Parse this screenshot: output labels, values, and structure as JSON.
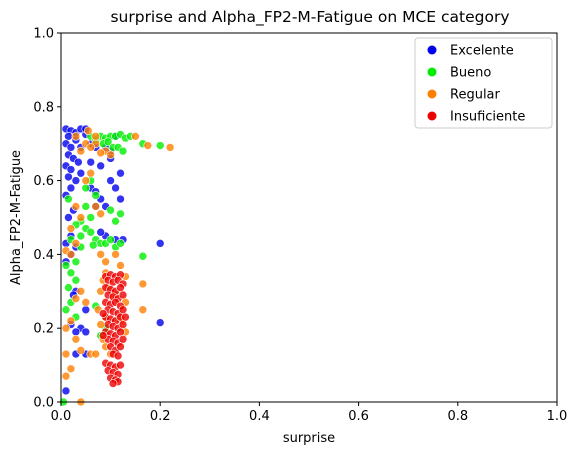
{
  "chart_data": {
    "type": "scatter",
    "title": "surprise and Alpha_FP2-M-Fatigue on MCE category",
    "xlabel": "surprise",
    "ylabel": "Alpha_FP2-M-Fatigue",
    "xlim": [
      0,
      1
    ],
    "ylim": [
      0,
      1
    ],
    "x_ticks": [
      "0.0",
      "0.2",
      "0.4",
      "0.6",
      "0.8",
      "1.0"
    ],
    "y_ticks": [
      "0.0",
      "0.2",
      "0.4",
      "0.6",
      "0.8",
      "1.0"
    ],
    "grid": false,
    "legend_position": "top-right",
    "series": [
      {
        "name": "Excelente",
        "color": "#0000ee",
        "points": [
          [
            0.01,
            0.74
          ],
          [
            0.02,
            0.735
          ],
          [
            0.015,
            0.72
          ],
          [
            0.03,
            0.73
          ],
          [
            0.04,
            0.74
          ],
          [
            0.05,
            0.725
          ],
          [
            0.01,
            0.7
          ],
          [
            0.02,
            0.69
          ],
          [
            0.03,
            0.71
          ],
          [
            0.015,
            0.67
          ],
          [
            0.025,
            0.66
          ],
          [
            0.01,
            0.64
          ],
          [
            0.02,
            0.63
          ],
          [
            0.035,
            0.65
          ],
          [
            0.015,
            0.61
          ],
          [
            0.03,
            0.6
          ],
          [
            0.02,
            0.58
          ],
          [
            0.01,
            0.56
          ],
          [
            0.04,
            0.62
          ],
          [
            0.06,
            0.7
          ],
          [
            0.07,
            0.69
          ],
          [
            0.09,
            0.69
          ],
          [
            0.1,
            0.68
          ],
          [
            0.11,
            0.72
          ],
          [
            0.06,
            0.58
          ],
          [
            0.07,
            0.57
          ],
          [
            0.08,
            0.55
          ],
          [
            0.09,
            0.53
          ],
          [
            0.07,
            0.53
          ],
          [
            0.11,
            0.58
          ],
          [
            0.12,
            0.55
          ],
          [
            0.1,
            0.6
          ],
          [
            0.12,
            0.62
          ],
          [
            0.11,
            0.44
          ],
          [
            0.09,
            0.45
          ],
          [
            0.08,
            0.46
          ],
          [
            0.125,
            0.44
          ],
          [
            0.02,
            0.45
          ],
          [
            0.01,
            0.43
          ],
          [
            0.03,
            0.42
          ],
          [
            0.02,
            0.4
          ],
          [
            0.01,
            0.38
          ],
          [
            0.03,
            0.3
          ],
          [
            0.025,
            0.29
          ],
          [
            0.05,
            0.25
          ],
          [
            0.04,
            0.2
          ],
          [
            0.02,
            0.21
          ],
          [
            0.03,
            0.19
          ],
          [
            0.05,
            0.19
          ],
          [
            0.03,
            0.13
          ],
          [
            0.05,
            0.13
          ],
          [
            0.01,
            0.03
          ],
          [
            0.2,
            0.43
          ],
          [
            0.2,
            0.215
          ],
          [
            0.04,
            0.69
          ],
          [
            0.05,
            0.74
          ],
          [
            0.08,
            0.64
          ],
          [
            0.1,
            0.66
          ],
          [
            0.06,
            0.65
          ],
          [
            0.015,
            0.5
          ],
          [
            0.025,
            0.52
          ]
        ]
      },
      {
        "name": "Bueno",
        "color": "#00ee00",
        "points": [
          [
            0.08,
            0.72
          ],
          [
            0.09,
            0.715
          ],
          [
            0.1,
            0.72
          ],
          [
            0.11,
            0.72
          ],
          [
            0.12,
            0.725
          ],
          [
            0.13,
            0.715
          ],
          [
            0.085,
            0.7
          ],
          [
            0.095,
            0.705
          ],
          [
            0.105,
            0.69
          ],
          [
            0.115,
            0.69
          ],
          [
            0.125,
            0.68
          ],
          [
            0.14,
            0.72
          ],
          [
            0.2,
            0.695
          ],
          [
            0.165,
            0.7
          ],
          [
            0.06,
            0.72
          ],
          [
            0.07,
            0.71
          ],
          [
            0.06,
            0.6
          ],
          [
            0.05,
            0.58
          ],
          [
            0.07,
            0.56
          ],
          [
            0.05,
            0.53
          ],
          [
            0.06,
            0.5
          ],
          [
            0.04,
            0.49
          ],
          [
            0.03,
            0.48
          ],
          [
            0.05,
            0.47
          ],
          [
            0.06,
            0.46
          ],
          [
            0.04,
            0.45
          ],
          [
            0.07,
            0.44
          ],
          [
            0.08,
            0.43
          ],
          [
            0.09,
            0.43
          ],
          [
            0.1,
            0.44
          ],
          [
            0.11,
            0.42
          ],
          [
            0.12,
            0.43
          ],
          [
            0.065,
            0.425
          ],
          [
            0.01,
            0.37
          ],
          [
            0.02,
            0.35
          ],
          [
            0.03,
            0.33
          ],
          [
            0.015,
            0.31
          ],
          [
            0.02,
            0.27
          ],
          [
            0.01,
            0.25
          ],
          [
            0.03,
            0.23
          ],
          [
            0.07,
            0.26
          ],
          [
            0.09,
            0.2
          ],
          [
            0.08,
            0.18
          ],
          [
            0.11,
            0.49
          ],
          [
            0.12,
            0.51
          ],
          [
            0.165,
            0.395
          ],
          [
            0.005,
            0.0
          ],
          [
            0.04,
            0.42
          ],
          [
            0.015,
            0.55
          ],
          [
            0.03,
            0.38
          ],
          [
            0.1,
            0.52
          ],
          [
            0.02,
            0.44
          ]
        ]
      },
      {
        "name": "Regular",
        "color": "#ff8000",
        "points": [
          [
            0.03,
            0.72
          ],
          [
            0.05,
            0.7
          ],
          [
            0.07,
            0.7
          ],
          [
            0.09,
            0.68
          ],
          [
            0.1,
            0.67
          ],
          [
            0.06,
            0.69
          ],
          [
            0.08,
            0.675
          ],
          [
            0.15,
            0.72
          ],
          [
            0.175,
            0.695
          ],
          [
            0.22,
            0.69
          ],
          [
            0.04,
            0.68
          ],
          [
            0.06,
            0.62
          ],
          [
            0.05,
            0.6
          ],
          [
            0.07,
            0.53
          ],
          [
            0.08,
            0.51
          ],
          [
            0.03,
            0.53
          ],
          [
            0.04,
            0.5
          ],
          [
            0.02,
            0.47
          ],
          [
            0.03,
            0.43
          ],
          [
            0.01,
            0.41
          ],
          [
            0.02,
            0.4
          ],
          [
            0.08,
            0.4
          ],
          [
            0.09,
            0.38
          ],
          [
            0.11,
            0.4
          ],
          [
            0.12,
            0.37
          ],
          [
            0.09,
            0.35
          ],
          [
            0.085,
            0.33
          ],
          [
            0.095,
            0.31
          ],
          [
            0.08,
            0.3
          ],
          [
            0.075,
            0.25
          ],
          [
            0.09,
            0.23
          ],
          [
            0.08,
            0.21
          ],
          [
            0.085,
            0.17
          ],
          [
            0.09,
            0.15
          ],
          [
            0.1,
            0.13
          ],
          [
            0.12,
            0.22
          ],
          [
            0.13,
            0.19
          ],
          [
            0.13,
            0.27
          ],
          [
            0.165,
            0.32
          ],
          [
            0.165,
            0.25
          ],
          [
            0.04,
            0.3
          ],
          [
            0.03,
            0.28
          ],
          [
            0.05,
            0.27
          ],
          [
            0.02,
            0.22
          ],
          [
            0.01,
            0.2
          ],
          [
            0.03,
            0.17
          ],
          [
            0.04,
            0.14
          ],
          [
            0.06,
            0.13
          ],
          [
            0.01,
            0.13
          ],
          [
            0.02,
            0.09
          ],
          [
            0.01,
            0.07
          ],
          [
            0.04,
            0.0
          ],
          [
            0.07,
            0.13
          ],
          [
            0.11,
            0.29
          ],
          [
            0.13,
            0.34
          ],
          [
            0.07,
            0.72
          ],
          [
            0.055,
            0.735
          ]
        ]
      },
      {
        "name": "Insuficiente",
        "color": "#ee0000",
        "points": [
          [
            0.09,
            0.34
          ],
          [
            0.1,
            0.345
          ],
          [
            0.11,
            0.34
          ],
          [
            0.12,
            0.345
          ],
          [
            0.095,
            0.33
          ],
          [
            0.105,
            0.325
          ],
          [
            0.115,
            0.33
          ],
          [
            0.125,
            0.32
          ],
          [
            0.09,
            0.31
          ],
          [
            0.1,
            0.305
          ],
          [
            0.11,
            0.3
          ],
          [
            0.12,
            0.31
          ],
          [
            0.095,
            0.29
          ],
          [
            0.105,
            0.285
          ],
          [
            0.115,
            0.28
          ],
          [
            0.125,
            0.29
          ],
          [
            0.09,
            0.27
          ],
          [
            0.1,
            0.265
          ],
          [
            0.11,
            0.27
          ],
          [
            0.12,
            0.26
          ],
          [
            0.095,
            0.25
          ],
          [
            0.105,
            0.245
          ],
          [
            0.115,
            0.24
          ],
          [
            0.125,
            0.25
          ],
          [
            0.09,
            0.23
          ],
          [
            0.1,
            0.225
          ],
          [
            0.11,
            0.22
          ],
          [
            0.12,
            0.23
          ],
          [
            0.095,
            0.21
          ],
          [
            0.105,
            0.205
          ],
          [
            0.115,
            0.2
          ],
          [
            0.125,
            0.21
          ],
          [
            0.09,
            0.19
          ],
          [
            0.1,
            0.185
          ],
          [
            0.11,
            0.18
          ],
          [
            0.12,
            0.19
          ],
          [
            0.095,
            0.17
          ],
          [
            0.105,
            0.165
          ],
          [
            0.115,
            0.16
          ],
          [
            0.125,
            0.17
          ],
          [
            0.1,
            0.15
          ],
          [
            0.11,
            0.14
          ],
          [
            0.12,
            0.15
          ],
          [
            0.105,
            0.13
          ],
          [
            0.115,
            0.125
          ],
          [
            0.09,
            0.105
          ],
          [
            0.1,
            0.1
          ],
          [
            0.11,
            0.095
          ],
          [
            0.12,
            0.1
          ],
          [
            0.095,
            0.085
          ],
          [
            0.105,
            0.08
          ],
          [
            0.115,
            0.075
          ],
          [
            0.1,
            0.065
          ],
          [
            0.11,
            0.06
          ],
          [
            0.115,
            0.055
          ],
          [
            0.105,
            0.05
          ],
          [
            0.085,
            0.24
          ],
          [
            0.085,
            0.18
          ],
          [
            0.13,
            0.23
          ]
        ]
      }
    ]
  }
}
